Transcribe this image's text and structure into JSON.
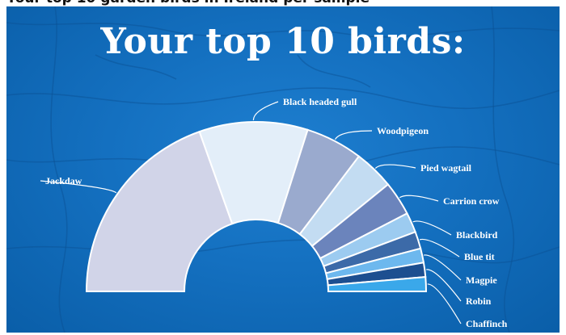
{
  "top_strip_text": "Your top 10 garden birds in Ireland per sample",
  "title": "Your top 10 birds:",
  "chart_data": {
    "type": "pie",
    "variant": "half-donut",
    "categories": [
      "Jackdaw",
      "Black headed gull",
      "Woodpigeon",
      "Pied wagtail",
      "Carrion crow",
      "Blackbird",
      "Blue tit",
      "Magpie",
      "Robin",
      "Chaffinch"
    ],
    "values": [
      36,
      19,
      10,
      7,
      6,
      3.5,
      3,
      2.5,
      2.5,
      2.5
    ],
    "colors": [
      "#d1d4e8",
      "#e3eef9",
      "#9aaace",
      "#c3dcf2",
      "#6b84bc",
      "#9ccbf0",
      "#3c6aa8",
      "#6db8ee",
      "#1d4f90",
      "#3aa8ea"
    ],
    "slice_stroke": "#ffffff",
    "leader_color": "#ffffff"
  }
}
